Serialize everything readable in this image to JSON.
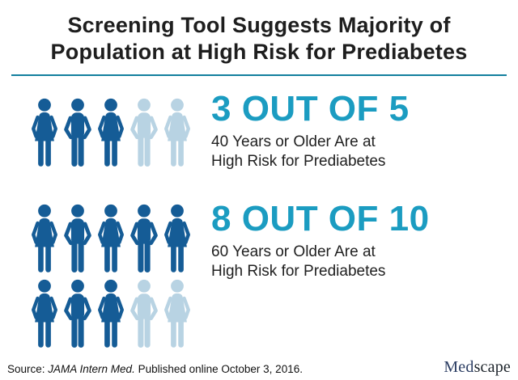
{
  "title": {
    "line1": "Screening Tool Suggests Majority of",
    "line2": "Population at High Risk for Prediabetes"
  },
  "colors": {
    "accent_teal": "#1b9cc1",
    "divider": "#127f9e",
    "figure_dark": "#155c96",
    "figure_light": "#b8d3e3",
    "text_dark": "#212121"
  },
  "stats": [
    {
      "headline": "3 OUT OF 5",
      "desc_line1": "40 Years or Older Are at",
      "desc_line2": "High Risk for Prediabetes",
      "rows": [
        [
          "dark-female",
          "dark-male",
          "dark-female",
          "light-male",
          "light-female"
        ]
      ]
    },
    {
      "headline": "8 OUT OF 10",
      "desc_line1": "60 Years or Older Are at",
      "desc_line2": "High Risk for Prediabetes",
      "rows": [
        [
          "dark-female",
          "dark-male",
          "dark-female",
          "dark-male",
          "dark-female"
        ],
        [
          "dark-female",
          "dark-male",
          "dark-female",
          "light-male",
          "light-female"
        ]
      ]
    }
  ],
  "footer": {
    "source_prefix": "Source: ",
    "source_italic": "JAMA Intern Med.",
    "source_suffix": " Published online October 3, 2016.",
    "brand_med": "Med",
    "brand_scape": "scape"
  },
  "chart_data": {
    "type": "bar",
    "subtype": "pictograph",
    "title": "Screening Tool Suggests Majority of Population at High Risk for Prediabetes",
    "categories": [
      "40 Years or Older",
      "60 Years or Older"
    ],
    "series": [
      {
        "name": "High Risk for Prediabetes (proportion)",
        "values": [
          0.6,
          0.8
        ]
      }
    ],
    "annotations": [
      "3 OUT OF 5",
      "8 OUT OF 10"
    ],
    "pictogram_counts": [
      {
        "highlighted": 3,
        "total": 5
      },
      {
        "highlighted": 8,
        "total": 10
      }
    ],
    "legend_position": "none",
    "grid": false
  }
}
